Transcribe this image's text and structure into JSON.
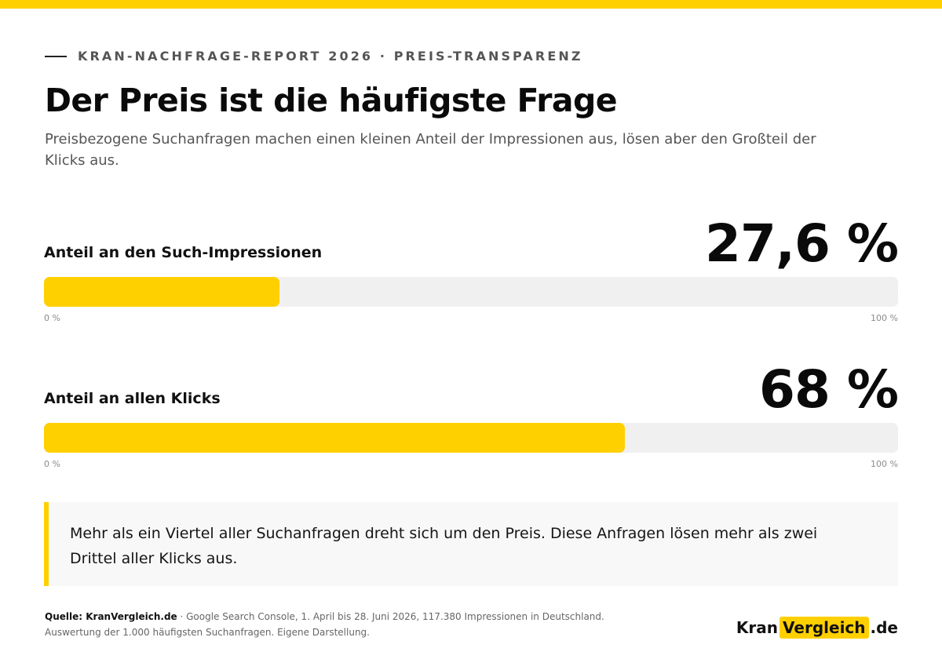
{
  "colors": {
    "accent": "#FFD000",
    "track": "#F0F0F0",
    "text": "#111111"
  },
  "header": {
    "kicker": "KRAN-NACHFRAGE-REPORT 2026 · PREIS-TRANSPARENZ",
    "title": "Der Preis ist die häufigste Frage",
    "subtitle": "Preisbezogene Suchanfragen machen einen kleinen Anteil der Impressionen aus, lösen aber den Großteil der Klicks aus."
  },
  "chart_data": {
    "type": "bar",
    "orientation": "horizontal",
    "xlim": [
      0,
      100
    ],
    "scale_min_label": "0 %",
    "scale_max_label": "100 %",
    "categories": [
      "Anteil an den Such-Impressionen",
      "Anteil an allen Klicks"
    ],
    "values": [
      27.6,
      68
    ],
    "value_labels": [
      "27,6 %",
      "68 %"
    ]
  },
  "callout": {
    "text": "Mehr als ein Viertel aller Suchanfragen dreht sich um den Preis. Diese Anfragen lösen mehr als zwei Drittel aller Klicks aus."
  },
  "footer": {
    "source_label": "Quelle: KranVergleich.de",
    "source_text": " · Google Search Console, 1. April bis 28. Juni 2026, 117.380 Impressionen in Deutschland.",
    "source_text_2": "Auswertung der 1.000 häufigsten Suchanfragen. Eigene Darstellung.",
    "logo_part1": "Kran",
    "logo_part2": "Vergleich",
    "logo_part3": ".de"
  }
}
